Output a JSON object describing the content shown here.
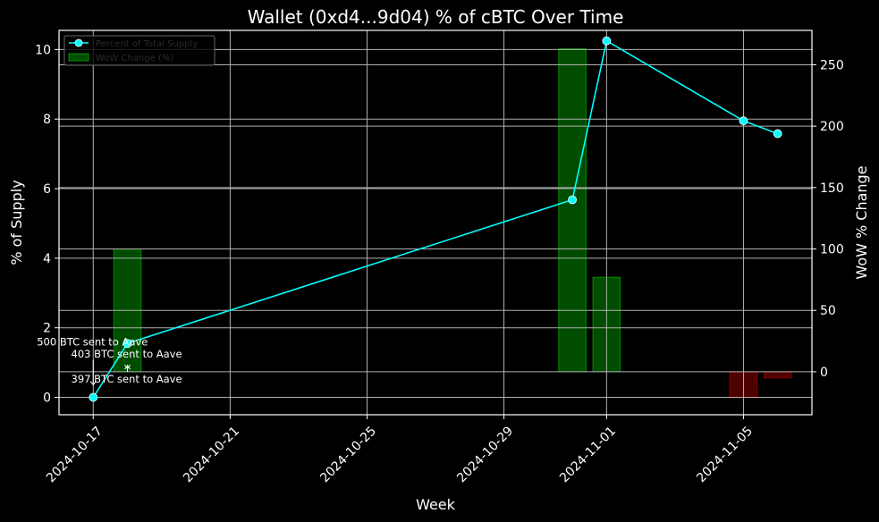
{
  "chart_data": {
    "type": "line",
    "title": "Wallet (0xd4...9d04) % of cBTC Over Time",
    "xlabel": "Week",
    "ylabel": "% of Supply",
    "ylabel_right": "WoW % Change",
    "x_ticks": [
      "2024-10-17",
      "2024-10-21",
      "2024-10-25",
      "2024-10-29",
      "2024-11-01",
      "2024-11-05"
    ],
    "xlim": [
      "2024-10-16",
      "2024-11-07"
    ],
    "ylim": [
      -0.5,
      10.55
    ],
    "y_ticks": [
      0,
      2,
      4,
      6,
      8,
      10
    ],
    "ylim_right": [
      -35,
      278
    ],
    "y_ticks_right": [
      0,
      50,
      100,
      150,
      200,
      250
    ],
    "grid": true,
    "legend_position": "top-left",
    "series": [
      {
        "name": "Percent of Total Supply",
        "type": "line",
        "axis": "left",
        "color": "#00ffff",
        "x": [
          "2024-10-17",
          "2024-10-18",
          "2024-10-31",
          "2024-11-01",
          "2024-11-05",
          "2024-11-06"
        ],
        "y": [
          0.0,
          1.55,
          5.68,
          10.25,
          7.95,
          7.58
        ]
      },
      {
        "name": "WoW Change (%)",
        "type": "bar",
        "axis": "right",
        "color_positive": "#00ff00",
        "color_negative": "#ff0000",
        "x": [
          "2024-10-18",
          "2024-10-31",
          "2024-11-01",
          "2024-11-05",
          "2024-11-06"
        ],
        "y": [
          100,
          263,
          77,
          -21,
          -5
        ]
      }
    ],
    "annotations": [
      {
        "text": "500 BTC sent to Aave",
        "x": "2024-10-17",
        "y": 0.0
      },
      {
        "text": "403 BTC sent to Aave",
        "x": "2024-10-18",
        "y": 1.55
      },
      {
        "text": "397 BTC sent to Aave",
        "x": "2024-10-18",
        "y": 1.55
      }
    ]
  }
}
